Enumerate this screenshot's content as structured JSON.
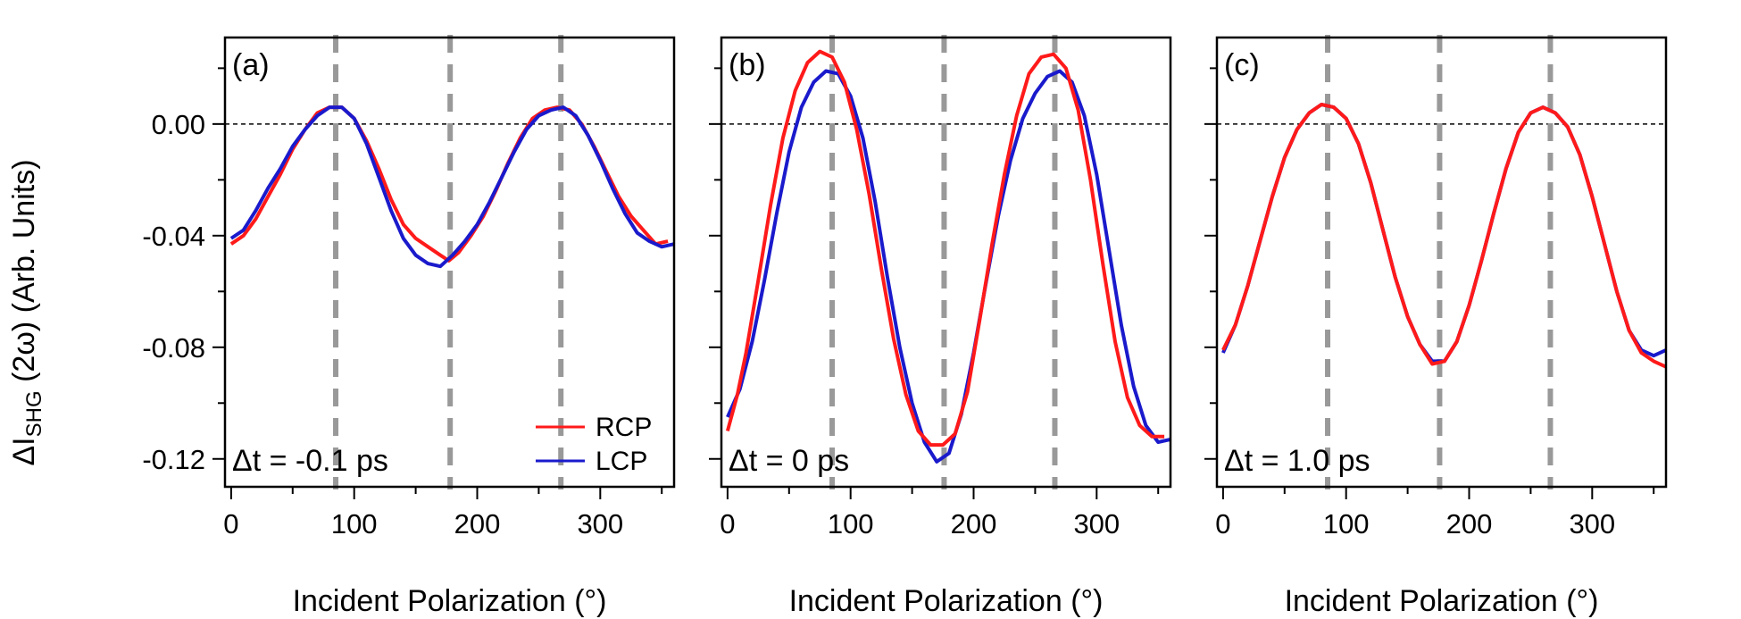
{
  "chart_data": {
    "type": "line",
    "ylabel_main": "ΔI",
    "ylabel_sub": "SHG",
    "ylabel_rest": " (2ω) (Arb. Units)",
    "xlabel": "Incident Polarization (°)",
    "xlim": [
      -5,
      360
    ],
    "ylim": [
      -0.13,
      0.031
    ],
    "xticks": [
      0,
      100,
      200,
      300
    ],
    "yticks": [
      -0.12,
      -0.08,
      -0.04,
      0.0
    ],
    "ytick_labels": [
      "-0.12",
      "-0.08",
      "-0.04",
      "0.00"
    ],
    "zero_line": 0,
    "legend": {
      "placement": "bottom-right",
      "panel": 0,
      "entries": [
        {
          "name": "RCP",
          "color": "#ff1a1a"
        },
        {
          "name": "LCP",
          "color": "#1a1acc"
        }
      ]
    },
    "panels": [
      {
        "label": "(a)",
        "delay": "Δt = -0.1 ps",
        "vlines": [
          85,
          178,
          268
        ],
        "series": [
          {
            "name": "RCP",
            "color": "#ff1a1a",
            "points": [
              [
                0,
                -0.043
              ],
              [
                10,
                -0.04
              ],
              [
                20,
                -0.034
              ],
              [
                30,
                -0.026
              ],
              [
                40,
                -0.018
              ],
              [
                50,
                -0.009
              ],
              [
                60,
                -0.002
              ],
              [
                70,
                0.004
              ],
              [
                80,
                0.006
              ],
              [
                90,
                0.006
              ],
              [
                100,
                0.002
              ],
              [
                110,
                -0.006
              ],
              [
                120,
                -0.016
              ],
              [
                130,
                -0.027
              ],
              [
                140,
                -0.036
              ],
              [
                150,
                -0.041
              ],
              [
                160,
                -0.044
              ],
              [
                170,
                -0.047
              ],
              [
                177,
                -0.049
              ],
              [
                185,
                -0.046
              ],
              [
                195,
                -0.04
              ],
              [
                205,
                -0.033
              ],
              [
                215,
                -0.024
              ],
              [
                225,
                -0.014
              ],
              [
                235,
                -0.005
              ],
              [
                245,
                0.002
              ],
              [
                255,
                0.005
              ],
              [
                265,
                0.006
              ],
              [
                275,
                0.005
              ],
              [
                285,
                0.0
              ],
              [
                295,
                -0.008
              ],
              [
                305,
                -0.017
              ],
              [
                315,
                -0.026
              ],
              [
                325,
                -0.033
              ],
              [
                335,
                -0.038
              ],
              [
                345,
                -0.043
              ],
              [
                355,
                -0.042
              ]
            ]
          },
          {
            "name": "LCP",
            "color": "#1a1acc",
            "points": [
              [
                0,
                -0.041
              ],
              [
                10,
                -0.038
              ],
              [
                20,
                -0.031
              ],
              [
                30,
                -0.023
              ],
              [
                40,
                -0.016
              ],
              [
                50,
                -0.008
              ],
              [
                60,
                -0.002
              ],
              [
                70,
                0.003
              ],
              [
                80,
                0.006
              ],
              [
                90,
                0.006
              ],
              [
                100,
                0.002
              ],
              [
                110,
                -0.007
              ],
              [
                120,
                -0.019
              ],
              [
                130,
                -0.031
              ],
              [
                140,
                -0.041
              ],
              [
                150,
                -0.047
              ],
              [
                160,
                -0.05
              ],
              [
                170,
                -0.051
              ],
              [
                180,
                -0.047
              ],
              [
                190,
                -0.042
              ],
              [
                200,
                -0.036
              ],
              [
                210,
                -0.028
              ],
              [
                220,
                -0.019
              ],
              [
                230,
                -0.01
              ],
              [
                240,
                -0.002
              ],
              [
                250,
                0.003
              ],
              [
                260,
                0.005
              ],
              [
                270,
                0.006
              ],
              [
                280,
                0.003
              ],
              [
                290,
                -0.004
              ],
              [
                300,
                -0.013
              ],
              [
                310,
                -0.023
              ],
              [
                320,
                -0.032
              ],
              [
                330,
                -0.039
              ],
              [
                340,
                -0.042
              ],
              [
                350,
                -0.044
              ],
              [
                360,
                -0.043
              ]
            ]
          }
        ]
      },
      {
        "label": "(b)",
        "delay": "Δt = 0 ps",
        "vlines": [
          85,
          176,
          266
        ],
        "series": [
          {
            "name": "LCP",
            "color": "#1a1acc",
            "points": [
              [
                0,
                -0.105
              ],
              [
                10,
                -0.095
              ],
              [
                20,
                -0.078
              ],
              [
                30,
                -0.056
              ],
              [
                40,
                -0.032
              ],
              [
                50,
                -0.01
              ],
              [
                60,
                0.006
              ],
              [
                70,
                0.015
              ],
              [
                80,
                0.019
              ],
              [
                90,
                0.018
              ],
              [
                100,
                0.01
              ],
              [
                110,
                -0.005
              ],
              [
                120,
                -0.028
              ],
              [
                130,
                -0.055
              ],
              [
                140,
                -0.08
              ],
              [
                150,
                -0.1
              ],
              [
                160,
                -0.114
              ],
              [
                170,
                -0.121
              ],
              [
                180,
                -0.118
              ],
              [
                190,
                -0.104
              ],
              [
                200,
                -0.082
              ],
              [
                210,
                -0.057
              ],
              [
                220,
                -0.033
              ],
              [
                230,
                -0.013
              ],
              [
                240,
                0.002
              ],
              [
                250,
                0.011
              ],
              [
                260,
                0.017
              ],
              [
                270,
                0.019
              ],
              [
                280,
                0.015
              ],
              [
                290,
                0.003
              ],
              [
                300,
                -0.018
              ],
              [
                310,
                -0.045
              ],
              [
                320,
                -0.072
              ],
              [
                330,
                -0.094
              ],
              [
                340,
                -0.108
              ],
              [
                350,
                -0.114
              ],
              [
                360,
                -0.113
              ]
            ]
          },
          {
            "name": "RCP",
            "color": "#ff1a1a",
            "points": [
              [
                0,
                -0.11
              ],
              [
                8,
                -0.097
              ],
              [
                15,
                -0.082
              ],
              [
                25,
                -0.056
              ],
              [
                35,
                -0.029
              ],
              [
                45,
                -0.005
              ],
              [
                55,
                0.012
              ],
              [
                65,
                0.022
              ],
              [
                75,
                0.026
              ],
              [
                85,
                0.024
              ],
              [
                95,
                0.015
              ],
              [
                105,
                -0.002
              ],
              [
                115,
                -0.025
              ],
              [
                125,
                -0.052
              ],
              [
                135,
                -0.077
              ],
              [
                145,
                -0.097
              ],
              [
                155,
                -0.11
              ],
              [
                165,
                -0.115
              ],
              [
                175,
                -0.115
              ],
              [
                185,
                -0.111
              ],
              [
                195,
                -0.096
              ],
              [
                205,
                -0.07
              ],
              [
                215,
                -0.043
              ],
              [
                225,
                -0.018
              ],
              [
                235,
                0.003
              ],
              [
                245,
                0.018
              ],
              [
                255,
                0.024
              ],
              [
                265,
                0.025
              ],
              [
                275,
                0.02
              ],
              [
                285,
                0.005
              ],
              [
                295,
                -0.02
              ],
              [
                305,
                -0.05
              ],
              [
                315,
                -0.078
              ],
              [
                325,
                -0.098
              ],
              [
                335,
                -0.108
              ],
              [
                345,
                -0.112
              ],
              [
                355,
                -0.112
              ]
            ]
          }
        ]
      },
      {
        "label": "(c)",
        "delay": "Δt = 1.0 ps",
        "vlines": [
          85,
          176,
          266
        ],
        "series": [
          {
            "name": "LCP",
            "color": "#1a1acc",
            "points": [
              [
                0,
                -0.082
              ],
              [
                10,
                -0.072
              ],
              [
                20,
                -0.058
              ],
              [
                30,
                -0.042
              ],
              [
                40,
                -0.026
              ],
              [
                50,
                -0.012
              ],
              [
                60,
                -0.002
              ],
              [
                70,
                0.004
              ],
              [
                80,
                0.007
              ],
              [
                90,
                0.006
              ],
              [
                100,
                0.002
              ],
              [
                110,
                -0.007
              ],
              [
                120,
                -0.021
              ],
              [
                130,
                -0.038
              ],
              [
                140,
                -0.055
              ],
              [
                150,
                -0.069
              ],
              [
                160,
                -0.079
              ],
              [
                170,
                -0.085
              ],
              [
                180,
                -0.085
              ],
              [
                190,
                -0.078
              ],
              [
                200,
                -0.065
              ],
              [
                210,
                -0.049
              ],
              [
                220,
                -0.032
              ],
              [
                230,
                -0.016
              ],
              [
                240,
                -0.003
              ],
              [
                250,
                0.004
              ],
              [
                260,
                0.006
              ],
              [
                270,
                0.004
              ],
              [
                280,
                -0.001
              ],
              [
                290,
                -0.011
              ],
              [
                300,
                -0.026
              ],
              [
                310,
                -0.043
              ],
              [
                320,
                -0.06
              ],
              [
                330,
                -0.074
              ],
              [
                340,
                -0.081
              ],
              [
                350,
                -0.083
              ],
              [
                360,
                -0.081
              ]
            ]
          },
          {
            "name": "RCP",
            "color": "#ff1a1a",
            "points": [
              [
                0,
                -0.081
              ],
              [
                10,
                -0.072
              ],
              [
                20,
                -0.058
              ],
              [
                30,
                -0.042
              ],
              [
                40,
                -0.026
              ],
              [
                50,
                -0.012
              ],
              [
                60,
                -0.002
              ],
              [
                70,
                0.004
              ],
              [
                80,
                0.007
              ],
              [
                90,
                0.006
              ],
              [
                100,
                0.002
              ],
              [
                110,
                -0.007
              ],
              [
                120,
                -0.021
              ],
              [
                130,
                -0.038
              ],
              [
                140,
                -0.055
              ],
              [
                150,
                -0.069
              ],
              [
                160,
                -0.079
              ],
              [
                170,
                -0.086
              ],
              [
                180,
                -0.085
              ],
              [
                190,
                -0.078
              ],
              [
                200,
                -0.065
              ],
              [
                210,
                -0.049
              ],
              [
                220,
                -0.032
              ],
              [
                230,
                -0.016
              ],
              [
                240,
                -0.003
              ],
              [
                250,
                0.004
              ],
              [
                260,
                0.006
              ],
              [
                270,
                0.004
              ],
              [
                280,
                -0.001
              ],
              [
                290,
                -0.011
              ],
              [
                300,
                -0.026
              ],
              [
                310,
                -0.043
              ],
              [
                320,
                -0.06
              ],
              [
                330,
                -0.074
              ],
              [
                340,
                -0.082
              ],
              [
                350,
                -0.085
              ],
              [
                360,
                -0.087
              ]
            ]
          }
        ]
      }
    ]
  }
}
